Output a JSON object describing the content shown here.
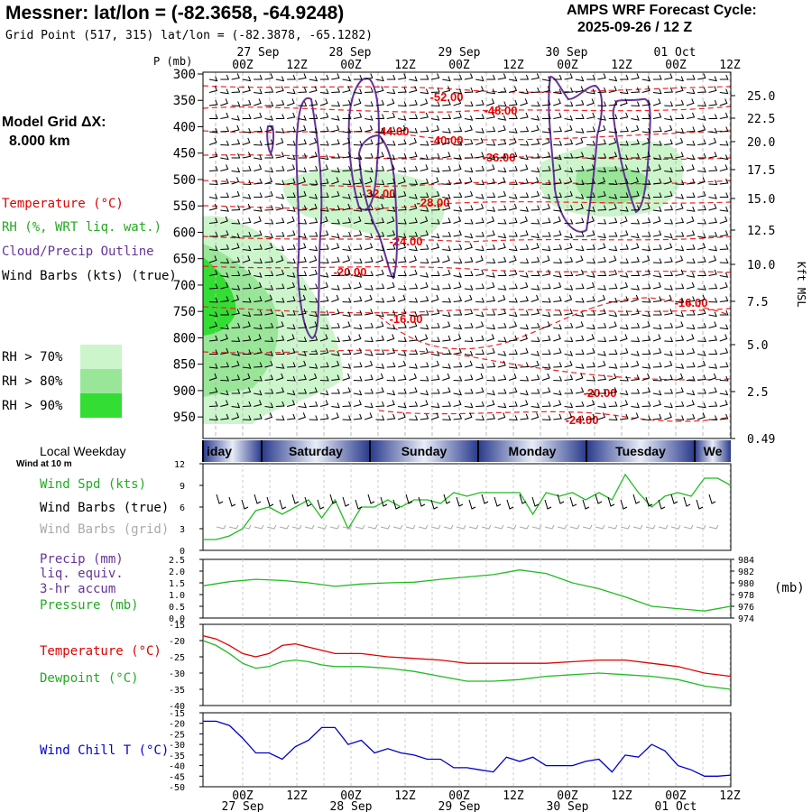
{
  "header": {
    "title": "Messner:  lat/lon = (-82.3658, -64.9248)",
    "grid_point": "Grid Point (517, 315) lat/lon = (-82.3878, -65.1282)",
    "cycle_line1": "AMPS WRF Forecast Cycle:",
    "cycle_line2": "2025-09-26 / 12  Z"
  },
  "top_panel": {
    "p_axis_label": "P (mb)",
    "model_grid_label": "Model Grid ΔX:",
    "model_grid_value": "8.000 km",
    "legend_temperature": "Temperature (°C)",
    "legend_rh": "RH (%, WRT liq. wat.)",
    "legend_cloud": "Cloud/Precip Outline",
    "legend_wind": "Wind Barbs (kts) (true)",
    "rh_key": [
      "RH > 70%",
      "RH > 80%",
      "RH > 90%"
    ],
    "rh_colors": [
      "#ccf5cc",
      "#99e699",
      "#33dd33"
    ],
    "right_axis_label": "Kft MSL",
    "pressure_ticks": [
      "300",
      "350",
      "400",
      "450",
      "500",
      "550",
      "600",
      "650",
      "700",
      "750",
      "800",
      "850",
      "900",
      "950"
    ],
    "height_ticks": [
      "25.0",
      "22.5",
      "20.0",
      "17.5",
      "15.0",
      "12.5",
      "10.0",
      "7.5",
      "5.0",
      "2.5",
      "0.49"
    ],
    "temp_labels": [
      "-52.00",
      "-48.00",
      "-44.00",
      "-40.00",
      "-36.00",
      "-32.00",
      "-28.00",
      "-24.00",
      "-20.00",
      "-16.00",
      "-16.00",
      "-20.00",
      "-24.00"
    ]
  },
  "time_axis": {
    "top_dates": [
      "27 Sep",
      "28 Sep",
      "29 Sep",
      "30 Sep",
      "01 Oct"
    ],
    "hour_ticks": [
      "00Z",
      "12Z",
      "00Z",
      "12Z",
      "00Z",
      "12Z",
      "00Z",
      "12Z",
      "00Z",
      "12Z"
    ],
    "weekday_title": "Local Weekday",
    "weekdays": [
      "iday",
      "Saturday",
      "Sunday",
      "Monday",
      "Tuesday",
      "We"
    ]
  },
  "wind_panel": {
    "note": "Wind at 10 m",
    "label_speed": "Wind Spd (kts)",
    "label_barbs_true": "Wind Barbs (true)",
    "label_barbs_grid": "Wind Barbs (grid)",
    "y_ticks": [
      "12",
      "9",
      "6",
      "3",
      "0"
    ]
  },
  "precip_panel": {
    "label_precip": "Precip (mm)",
    "label_liq": "liq. equiv.",
    "label_accum": "3-hr accum",
    "label_pressure": "Pressure (mb)",
    "left_ticks": [
      "2.5",
      "2.0",
      "1.5",
      "1.0",
      "0.5",
      "0.0"
    ],
    "right_ticks": [
      "984",
      "982",
      "980",
      "978",
      "976",
      "974"
    ],
    "right_unit": "(mb)"
  },
  "temp_panel": {
    "label_temp": "Temperature (°C)",
    "label_dew": "Dewpoint (°C)",
    "y_ticks": [
      "-15",
      "-20",
      "-25",
      "-30",
      "-35",
      "-40"
    ]
  },
  "chill_panel": {
    "label": "Wind Chill T (°C)",
    "y_ticks": [
      "-15",
      "-20",
      "-25",
      "-30",
      "-35",
      "-40",
      "-45",
      "-50"
    ]
  },
  "chart_data": [
    {
      "type": "line",
      "title": "Wind Spd (kts)",
      "x_hours": [
        0,
        3,
        6,
        9,
        12,
        15,
        18,
        21,
        24,
        27,
        30,
        33,
        36,
        39,
        42,
        45,
        48,
        51,
        54,
        57,
        60,
        63,
        66,
        69,
        72,
        75,
        78,
        81,
        84,
        87,
        90,
        93,
        96,
        99,
        102,
        105,
        108,
        111,
        114,
        117,
        120
      ],
      "series": [
        {
          "name": "Wind Spd (kts)",
          "color": "#22bb22",
          "values": [
            1.5,
            1.5,
            2,
            3,
            5.5,
            6,
            5,
            6,
            7,
            4.5,
            7,
            3,
            6,
            6,
            7,
            6,
            7,
            7,
            6.5,
            8,
            7.5,
            8,
            8,
            8,
            8,
            5,
            8,
            7.5,
            8,
            7,
            8,
            7,
            10.5,
            8,
            6,
            7.5,
            8,
            7.5,
            10,
            10,
            9
          ]
        }
      ],
      "ylim": [
        0,
        12
      ]
    },
    {
      "type": "line",
      "title": "Pressure (mb)",
      "x_hours": [
        0,
        6,
        12,
        18,
        24,
        30,
        36,
        42,
        48,
        54,
        60,
        66,
        72,
        78,
        84,
        90,
        96,
        102,
        108,
        114,
        120
      ],
      "series": [
        {
          "name": "Pressure (mb)",
          "color": "#22bb22",
          "values": [
            979.5,
            980.2,
            980.6,
            980.4,
            980.0,
            979.4,
            979.8,
            980.0,
            980.1,
            980.6,
            981.0,
            981.4,
            982.2,
            981.6,
            980.0,
            979.0,
            977.6,
            976.0,
            975.6,
            975.2,
            976.0
          ]
        }
      ],
      "ylim": [
        974,
        984
      ]
    },
    {
      "type": "line",
      "title": "Temperature / Dewpoint (°C)",
      "x_hours": [
        0,
        3,
        6,
        9,
        12,
        15,
        18,
        21,
        24,
        27,
        30,
        33,
        36,
        42,
        48,
        54,
        60,
        66,
        72,
        78,
        84,
        90,
        96,
        102,
        108,
        114,
        120
      ],
      "series": [
        {
          "name": "Temperature (°C)",
          "color": "#dd0000",
          "values": [
            -18.5,
            -19.5,
            -21.5,
            -24,
            -25,
            -24,
            -21.5,
            -21,
            -22,
            -23,
            -24,
            -24,
            -24,
            -25,
            -25.5,
            -26,
            -27,
            -27,
            -27,
            -27,
            -26.5,
            -26,
            -26,
            -27,
            -28,
            -30,
            -31
          ]
        },
        {
          "name": "Dewpoint (°C)",
          "color": "#22bb22",
          "values": [
            -20,
            -21.5,
            -24,
            -27,
            -28.5,
            -28,
            -26.5,
            -26,
            -26.5,
            -27.5,
            -28,
            -28,
            -28,
            -28.5,
            -29.5,
            -31,
            -32.5,
            -32.5,
            -32,
            -31,
            -30.5,
            -30,
            -30.5,
            -31,
            -32,
            -34,
            -35
          ]
        }
      ],
      "ylim": [
        -40,
        -15
      ]
    },
    {
      "type": "line",
      "title": "Wind Chill T (°C)",
      "x_hours": [
        0,
        3,
        6,
        9,
        12,
        15,
        18,
        21,
        24,
        27,
        30,
        33,
        36,
        39,
        42,
        45,
        48,
        51,
        54,
        57,
        60,
        63,
        66,
        69,
        72,
        75,
        78,
        81,
        84,
        87,
        90,
        93,
        96,
        99,
        102,
        105,
        108,
        111,
        114,
        117,
        120
      ],
      "series": [
        {
          "name": "Wind Chill T (°C)",
          "color": "#0000cc",
          "values": [
            -19,
            -19,
            -21,
            -27,
            -34,
            -34,
            -37,
            -31,
            -28,
            -22,
            -22,
            -30,
            -28,
            -34,
            -32,
            -34,
            -35,
            -37,
            -37,
            -41,
            -41,
            -42,
            -43,
            -36,
            -38,
            -36,
            -40,
            -40,
            -40,
            -38,
            -37,
            -43,
            -35,
            -36,
            -30,
            -33,
            -40,
            -42,
            -45,
            -45,
            -44.5
          ]
        }
      ],
      "ylim": [
        -50,
        -15
      ]
    }
  ]
}
